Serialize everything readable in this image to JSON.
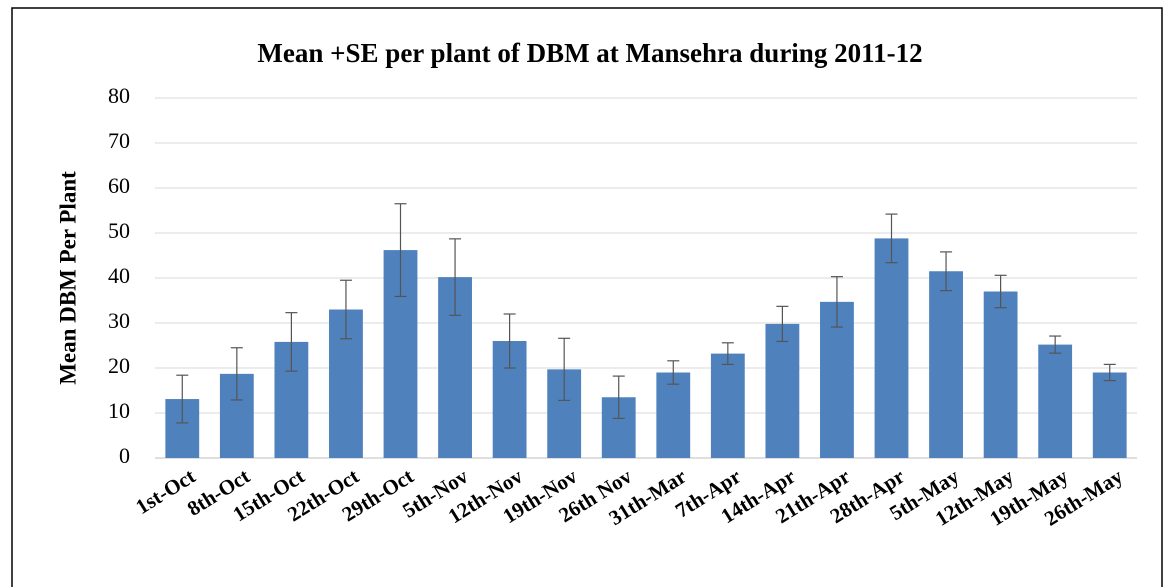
{
  "chart_data": {
    "type": "bar",
    "title": "Mean +SE per plant of DBM at Mansehra during 2011-12",
    "y_label": "Mean DBM Per Plant",
    "categories": [
      "1st-Oct",
      "8th-Oct",
      "15th-Oct",
      "22th-Oct",
      "29th-Oct",
      "5th-Nov",
      "12th-Nov",
      "19th-Nov",
      "26th Nov",
      "31th-Mar",
      "7th-Apr",
      "14th-Apr",
      "21th-Apr",
      "28th-Apr",
      "5th-May",
      "12th-May",
      "19th-May",
      "26th-May"
    ],
    "values": [
      13.1,
      18.7,
      25.8,
      33,
      46.2,
      40.2,
      26,
      19.7,
      13.5,
      19,
      23.2,
      29.8,
      34.7,
      48.8,
      41.5,
      37,
      25.2,
      19
    ],
    "errors": [
      5.3,
      5.8,
      6.5,
      6.5,
      10.3,
      8.5,
      6,
      6.9,
      4.7,
      2.6,
      2.4,
      3.9,
      5.6,
      5.4,
      4.3,
      3.6,
      1.9,
      1.8
    ],
    "color": "#4f81bd",
    "ylim": [
      0,
      80
    ],
    "yticks": [
      0,
      10,
      20,
      30,
      40,
      50,
      60,
      70,
      80
    ],
    "grid": true
  }
}
